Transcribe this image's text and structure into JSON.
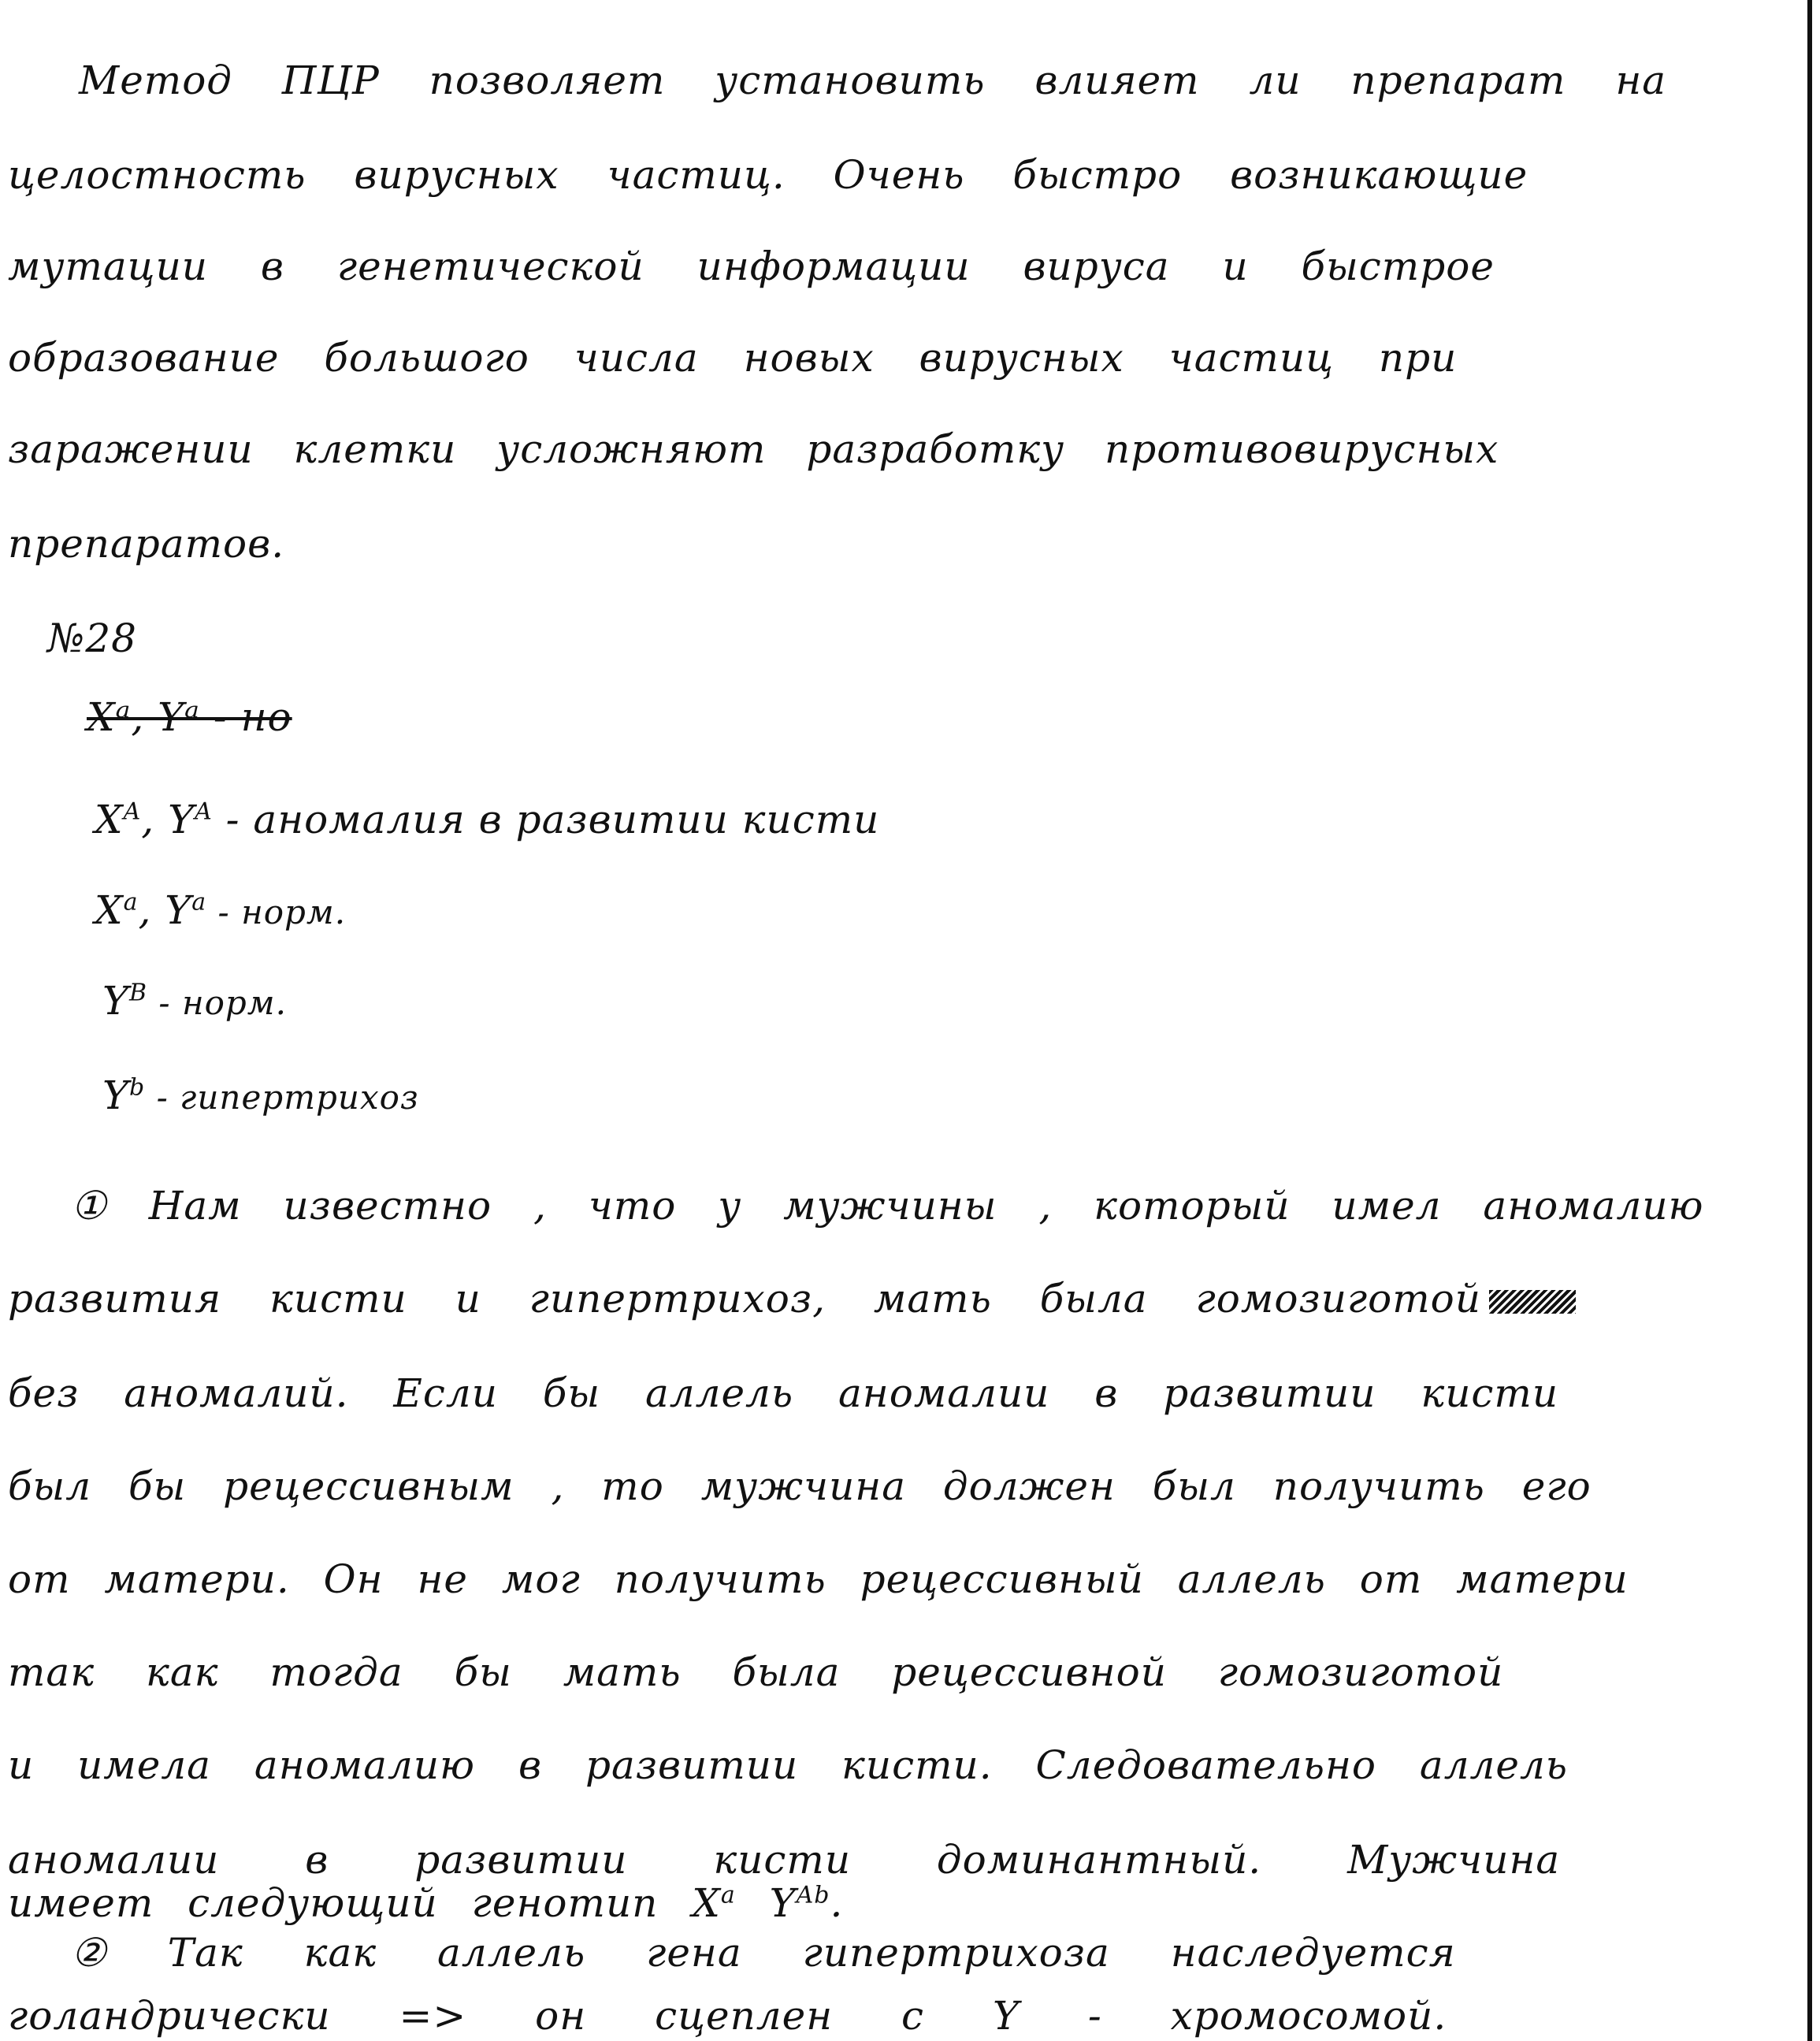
{
  "document": {
    "paragraph1": {
      "line1": "Метод ПЦР позволяет установить влияет ли препарат на",
      "line2": "целостность вирусных частиц. Очень быстро возникающие",
      "line3": "мутации в генетической информации вируса и быстрое",
      "line4": "образование большого числа новых вирусных частиц при",
      "line5": "заражении клетки усложняют разработку противовирусных",
      "line6": "препаратов."
    },
    "task_number": "№28",
    "notation": {
      "struck": "Xᵃ, Yᵃ - но",
      "line1_symbol": "X",
      "line1_sup1": "A",
      "line1_sep": ", Y",
      "line1_sup2": "A",
      "line1_text": " - аномалия в развитии кисти",
      "line2_symbol": "X",
      "line2_sup1": "a",
      "line2_sep": ", Y",
      "line2_sup2": "a",
      "line2_text": " - норм.",
      "line3_symbol": "Y",
      "line3_sup": "B",
      "line3_text": " - норм.",
      "line4_symbol": "Y",
      "line4_sup": "b",
      "line4_text": " - гипертрихоз"
    },
    "paragraph2": {
      "line1": "① Нам известно , что у мужчины , который имел аномалию",
      "line2": "развития кисти и гипертрихоз, мать была гомозиготой",
      "line3": "без аномалий. Если бы аллель аномалии в развитии кисти",
      "line4": "был бы рецессивным , то мужчина должен был получить его",
      "line5": "от матери. Он не мог получить рецессивный аллель от матери",
      "line6": "так как тогда бы мать была рецессивной гомозиготой",
      "line7": "и имела аномалию в развитии кисти. Следовательно аллель",
      "line8": "аномалии в развитии кисти доминантный. Мужчина",
      "line9_text": "имеет следующий генотип X",
      "line9_sup1": "a",
      "line9_sep": " Y",
      "line9_sup2": "Ab",
      "line9_end": "."
    },
    "paragraph3": {
      "line1": "② Так как аллель гена гипертрихоза наследуется",
      "line2": "голандрически => он сцеплен с Y - хромосомой."
    }
  }
}
